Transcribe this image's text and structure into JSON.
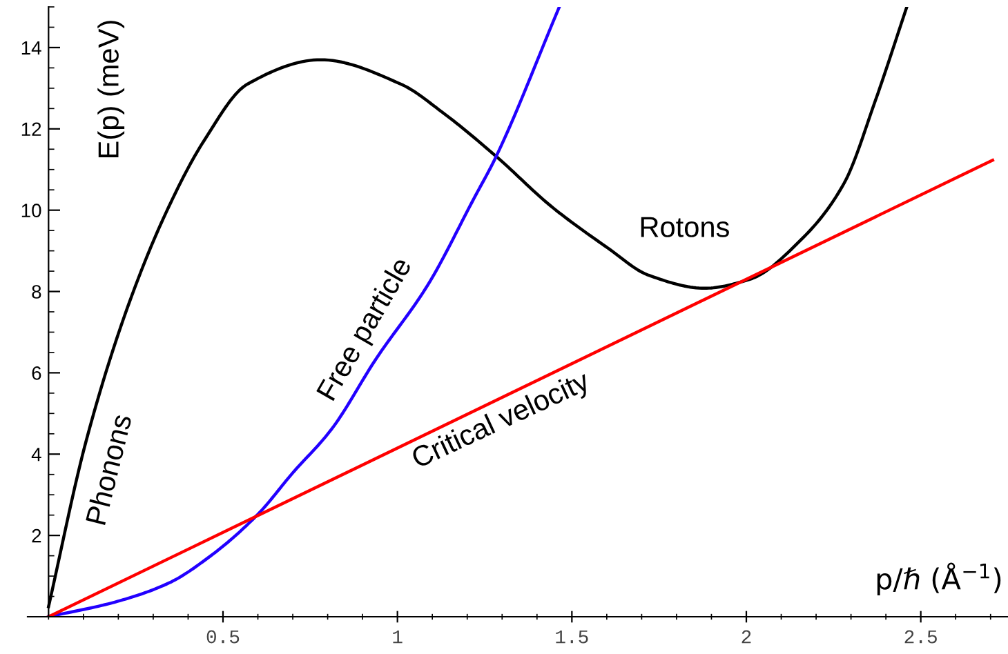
{
  "chart_data": {
    "type": "line",
    "xlabel": "p/ℏ (Å$^{−1}$)",
    "ylabel": "E(p) (meV)",
    "xlim": [
      -0.06,
      2.75
    ],
    "ylim": [
      0,
      15
    ],
    "xticks": [
      0.5,
      1,
      1.5,
      2,
      2.5
    ],
    "yticks": [
      2,
      4,
      6,
      8,
      10,
      12,
      14
    ],
    "grid": false,
    "legend": false,
    "marker": "none",
    "line_style": "solid",
    "series": [
      {
        "color": "#000000",
        "x": [
          0,
          0.107,
          0.226,
          0.34,
          0.445,
          0.57,
          0.78,
          1.01,
          1.13,
          1.286,
          1.44,
          1.603,
          1.72,
          1.88,
          2.01,
          2.16,
          2.28,
          2.37,
          2.46
        ],
        "values": [
          0.25,
          4.3,
          7.6,
          10.0,
          11.7,
          13.1,
          13.7,
          13.1,
          12.4,
          11.3,
          10.1,
          9.07,
          8.4,
          8.08,
          8.3,
          9.3,
          10.66,
          12.7,
          15.0
        ]
      },
      {
        "color": "#2200ff",
        "x": [
          0,
          0.19,
          0.345,
          0.465,
          0.6,
          0.7,
          0.81,
          0.94,
          1.087,
          1.22,
          1.28,
          1.464
        ],
        "values": [
          0,
          0.36,
          0.83,
          1.5,
          2.52,
          3.54,
          4.6,
          6.36,
          8.16,
          10.3,
          11.27,
          15.0
        ]
      },
      {
        "color": "#ff0000",
        "x": [
          0,
          2.706
        ],
        "values": [
          0,
          11.23
        ]
      }
    ],
    "annotations": [
      "Phonons",
      "Free particle",
      "Critical velocity",
      "Rotons"
    ]
  }
}
